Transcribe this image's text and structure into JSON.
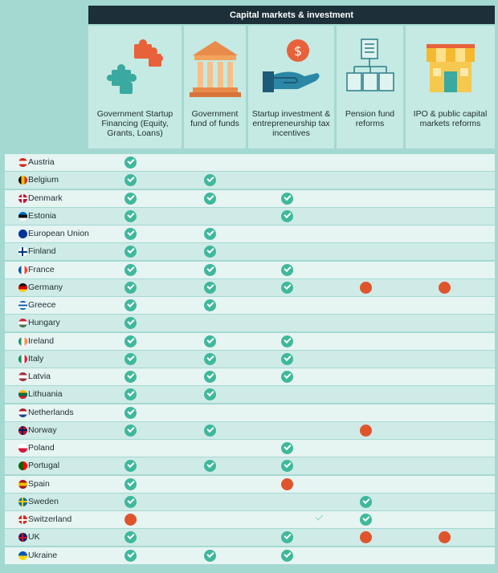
{
  "header": {
    "title": "Capital markets & investment"
  },
  "columns": [
    {
      "label": "Government Startup Financing (Equity, Grants, Loans)",
      "icon": "puzzle-icon"
    },
    {
      "label": "Government fund of funds",
      "icon": "bank-building-icon"
    },
    {
      "label": "Startup investment & entrepreneurship tax incentives",
      "icon": "hand-coin-icon"
    },
    {
      "label": "Pension fund reforms",
      "icon": "document-hierarchy-icon"
    },
    {
      "label": "IPO & public capital markets reforms",
      "icon": "storefront-icon"
    }
  ],
  "rows": [
    {
      "country": "Austria",
      "flag": [
        "#d52b1e",
        "#ffffff",
        "#d52b1e"
      ],
      "marks": [
        "check",
        "",
        "",
        "",
        ""
      ]
    },
    {
      "country": "Belgium",
      "flag": [
        "#111111",
        "#f2c200",
        "#d52b1e"
      ],
      "flag_dir": "v",
      "marks": [
        "check",
        "check",
        "",
        "",
        ""
      ]
    },
    {
      "country": "Denmark",
      "flag": [
        "#c8102e"
      ],
      "cross": "#ffffff",
      "marks": [
        "check",
        "check",
        "check",
        "",
        ""
      ]
    },
    {
      "country": "Estonia",
      "flag": [
        "#0072ce",
        "#111111",
        "#ffffff"
      ],
      "marks": [
        "check",
        "",
        "check",
        "",
        ""
      ]
    },
    {
      "country": "European Union",
      "flag": [
        "#003399"
      ],
      "marks": [
        "check",
        "check",
        "",
        "",
        ""
      ]
    },
    {
      "country": "Finland",
      "flag": [
        "#ffffff"
      ],
      "cross": "#003580",
      "marks": [
        "check",
        "check",
        "",
        "",
        ""
      ]
    },
    {
      "country": "France",
      "flag": [
        "#0055a4",
        "#ffffff",
        "#ef4135"
      ],
      "flag_dir": "v",
      "marks": [
        "check",
        "check",
        "check",
        "",
        ""
      ]
    },
    {
      "country": "Germany",
      "flag": [
        "#111111",
        "#dd0000",
        "#ffce00"
      ],
      "marks": [
        "check",
        "check",
        "check",
        "planned",
        "planned"
      ]
    },
    {
      "country": "Greece",
      "flag": [
        "#0d5eaf",
        "#ffffff",
        "#0d5eaf",
        "#ffffff",
        "#0d5eaf"
      ],
      "marks": [
        "check",
        "check",
        "",
        "",
        ""
      ]
    },
    {
      "country": "Hungary",
      "flag": [
        "#ce2939",
        "#ffffff",
        "#477050"
      ],
      "marks": [
        "check",
        "",
        "",
        "",
        ""
      ]
    },
    {
      "country": "Ireland",
      "flag": [
        "#169b62",
        "#ffffff",
        "#ff883e"
      ],
      "flag_dir": "v",
      "marks": [
        "check",
        "check",
        "check",
        "",
        ""
      ]
    },
    {
      "country": "Italy",
      "flag": [
        "#009246",
        "#ffffff",
        "#ce2b37"
      ],
      "flag_dir": "v",
      "marks": [
        "check",
        "check",
        "check",
        "",
        ""
      ]
    },
    {
      "country": "Latvia",
      "flag": [
        "#9e3039",
        "#ffffff",
        "#9e3039"
      ],
      "marks": [
        "check",
        "check",
        "check",
        "",
        ""
      ]
    },
    {
      "country": "Lithuania",
      "flag": [
        "#fdb913",
        "#006a44",
        "#c1272d"
      ],
      "marks": [
        "check",
        "check",
        "",
        "",
        ""
      ]
    },
    {
      "country": "Netherlands",
      "flag": [
        "#ae1c28",
        "#ffffff",
        "#21468b"
      ],
      "marks": [
        "check",
        "",
        "",
        "",
        ""
      ]
    },
    {
      "country": "Norway",
      "flag": [
        "#ba0c2f"
      ],
      "cross": "#00205b",
      "marks": [
        "check",
        "check",
        "",
        "planned",
        ""
      ]
    },
    {
      "country": "Poland",
      "flag": [
        "#ffffff",
        "#dc143c"
      ],
      "marks": [
        "",
        "",
        "check",
        "",
        ""
      ]
    },
    {
      "country": "Portugal",
      "flag": [
        "#006600",
        "#ff0000"
      ],
      "flag_dir": "v",
      "marks": [
        "check",
        "check",
        "check",
        "",
        ""
      ]
    },
    {
      "country": "Spain",
      "flag": [
        "#aa151b",
        "#f1bf00",
        "#aa151b"
      ],
      "marks": [
        "check",
        "",
        "planned",
        "",
        ""
      ]
    },
    {
      "country": "Sweden",
      "flag": [
        "#006aa7"
      ],
      "cross": "#fecc00",
      "marks": [
        "check",
        "",
        "",
        "check",
        ""
      ]
    },
    {
      "country": "Switzerland",
      "flag": [
        "#d52b1e"
      ],
      "cross": "#ffffff",
      "marks": [
        "planned",
        "",
        "faint",
        "check",
        ""
      ]
    },
    {
      "country": "UK",
      "flag": [
        "#012169"
      ],
      "cross": "#c8102e",
      "marks": [
        "check",
        "",
        "check",
        "planned",
        "planned"
      ]
    },
    {
      "country": "Ukraine",
      "flag": [
        "#0057b7",
        "#ffd700"
      ],
      "marks": [
        "check",
        "check",
        "check",
        "",
        ""
      ]
    }
  ]
}
